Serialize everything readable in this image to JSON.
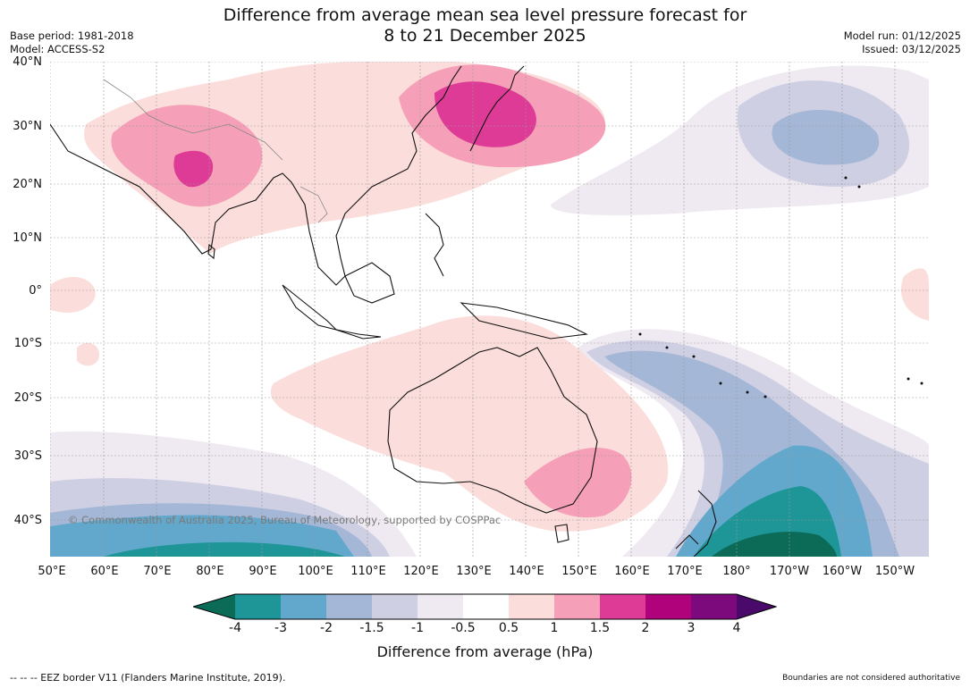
{
  "title_line1": "Difference from average mean sea level pressure forecast for",
  "title_line2": "8 to 21 December 2025",
  "meta_left": {
    "base_period": "Base period: 1981-2018",
    "model": "Model: ACCESS-S2"
  },
  "meta_right": {
    "model_run": "Model run: 01/12/2025",
    "issued": "Issued: 03/12/2025"
  },
  "latitude_labels": [
    "40°N",
    "30°N",
    "20°N",
    "10°N",
    "0°",
    "10°S",
    "20°S",
    "30°S",
    "40°S"
  ],
  "longitude_labels": [
    "50°E",
    "60°E",
    "70°E",
    "80°E",
    "90°E",
    "100°E",
    "110°E",
    "120°E",
    "130°E",
    "140°E",
    "150°E",
    "160°E",
    "170°E",
    "180°",
    "170°W",
    "160°W",
    "150°W"
  ],
  "copyright": "© Commonwealth of Australia 2025, Bureau of Meteorology, supported by COSPPac",
  "colorbar": {
    "ticks": [
      "-4",
      "-3",
      "-2",
      "-1.5",
      "-1",
      "-0.5",
      "0.5",
      "1",
      "1.5",
      "2",
      "3",
      "4"
    ],
    "colors": [
      "#0b6b57",
      "#1e9597",
      "#62a8cc",
      "#a4b7d6",
      "#cfcfe3",
      "#efeaf2",
      "#ffffff",
      "#fbdedb",
      "#f5a0b8",
      "#de3b96",
      "#b0037b",
      "#7c0a7d",
      "#4a0a6a"
    ],
    "title": "Difference from average (hPa)"
  },
  "eez_legend": "--  --  -- EEZ border V11 (Flanders Marine Institute, 2019).",
  "boundary_note": "Boundaries are not considered authoritative"
}
